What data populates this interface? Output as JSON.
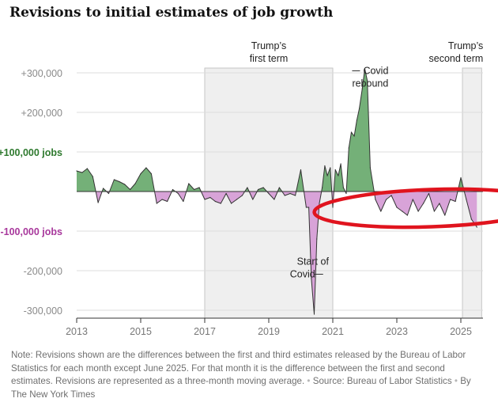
{
  "title": "Revisions to initial estimates of job growth",
  "chart_data": {
    "type": "area",
    "title": "Revisions to initial estimates of job growth",
    "xlabel": "",
    "ylabel": "",
    "xlim": [
      2013,
      2025.75
    ],
    "ylim": [
      -300000,
      300000
    ],
    "y_ticks": [
      {
        "value": 300000,
        "label": "+300,000"
      },
      {
        "value": 200000,
        "label": "+200,000"
      },
      {
        "value": 100000,
        "label": "+100,000 jobs",
        "color": "#2f7a2f"
      },
      {
        "value": -100000,
        "label": "-100,000 jobs",
        "color": "#a8389c"
      },
      {
        "value": -200000,
        "label": "-200,000"
      },
      {
        "value": -300000,
        "label": "-300,000"
      }
    ],
    "x_ticks": [
      {
        "value": 2013,
        "label": "2013"
      },
      {
        "value": 2015,
        "label": "2015"
      },
      {
        "value": 2017,
        "label": "2017"
      },
      {
        "value": 2019,
        "label": "2019"
      },
      {
        "value": 2021,
        "label": "2021"
      },
      {
        "value": 2023,
        "label": "2023"
      },
      {
        "value": 2025,
        "label": "2025"
      }
    ],
    "colors": {
      "positive": "#74b078",
      "negative": "#d8a3d8",
      "line": "#333333",
      "shade": "#efefef",
      "highlight": "#e0141e"
    },
    "shaded_periods": [
      {
        "start": 2017.0,
        "end": 2021.0,
        "label_line1": "Trump’s",
        "label_line2": "first term"
      },
      {
        "start": 2025.05,
        "end": 2025.65,
        "label_line1": "Trump’s",
        "label_line2": "second term"
      }
    ],
    "annotations": [
      {
        "x": 2021.9,
        "y": 265000,
        "line1": "Covid",
        "line2": "rebound"
      },
      {
        "x": 2020.55,
        "y": -165000,
        "line1": "Start of",
        "line2": "Covid"
      }
    ],
    "highlight_ellipse": {
      "x_center": 2024.07,
      "y_center": -42000,
      "x_radius": 3.65,
      "y_radius": 47000
    },
    "series": [
      {
        "name": "Three-month moving average of revisions",
        "x": [
          2013.0,
          2013.17,
          2013.33,
          2013.5,
          2013.67,
          2013.83,
          2014.0,
          2014.17,
          2014.33,
          2014.5,
          2014.67,
          2014.83,
          2015.0,
          2015.17,
          2015.33,
          2015.5,
          2015.67,
          2015.83,
          2016.0,
          2016.17,
          2016.33,
          2016.5,
          2016.67,
          2016.83,
          2017.0,
          2017.17,
          2017.33,
          2017.5,
          2017.67,
          2017.83,
          2018.0,
          2018.17,
          2018.33,
          2018.5,
          2018.67,
          2018.83,
          2019.0,
          2019.17,
          2019.33,
          2019.5,
          2019.67,
          2019.83,
          2020.0,
          2020.17,
          2020.25,
          2020.33,
          2020.42,
          2020.5,
          2020.58,
          2020.67,
          2020.75,
          2020.83,
          2020.92,
          2021.0,
          2021.08,
          2021.17,
          2021.25,
          2021.33,
          2021.42,
          2021.5,
          2021.58,
          2021.67,
          2021.75,
          2021.83,
          2021.92,
          2022.0,
          2022.08,
          2022.17,
          2022.33,
          2022.5,
          2022.67,
          2022.83,
          2023.0,
          2023.17,
          2023.33,
          2023.5,
          2023.67,
          2023.83,
          2024.0,
          2024.17,
          2024.33,
          2024.5,
          2024.67,
          2024.83,
          2025.0,
          2025.17,
          2025.33,
          2025.5
        ],
        "values": [
          52000,
          48000,
          58000,
          38000,
          -28000,
          8000,
          -5000,
          30000,
          25000,
          18000,
          5000,
          20000,
          45000,
          60000,
          45000,
          -30000,
          -20000,
          -25000,
          5000,
          -5000,
          -25000,
          20000,
          5000,
          10000,
          -20000,
          -15000,
          -25000,
          -30000,
          -5000,
          -30000,
          -20000,
          -10000,
          10000,
          -20000,
          5000,
          10000,
          -5000,
          -20000,
          10000,
          -10000,
          -5000,
          -10000,
          55000,
          -40000,
          -40000,
          -220000,
          -310000,
          -120000,
          -30000,
          10000,
          65000,
          40000,
          60000,
          -40000,
          55000,
          40000,
          70000,
          10000,
          -5000,
          110000,
          150000,
          140000,
          180000,
          210000,
          260000,
          310000,
          280000,
          60000,
          -20000,
          -50000,
          -20000,
          -10000,
          -40000,
          -50000,
          -60000,
          -20000,
          -50000,
          -30000,
          -5000,
          -50000,
          -30000,
          -60000,
          -20000,
          -25000,
          35000,
          -20000,
          -70000,
          -90000
        ]
      }
    ]
  },
  "footnote": {
    "note": "Note: Revisions shown are the differences between the first and third estimates released by the Bureau of Labor Statistics for each month except June 2025. For that month it is the difference between the first and second estimates. Revisions are represented as a three-month moving average.",
    "source": "Source: Bureau of Labor Statistics",
    "credit": "By The New York Times",
    "separator": "•"
  }
}
